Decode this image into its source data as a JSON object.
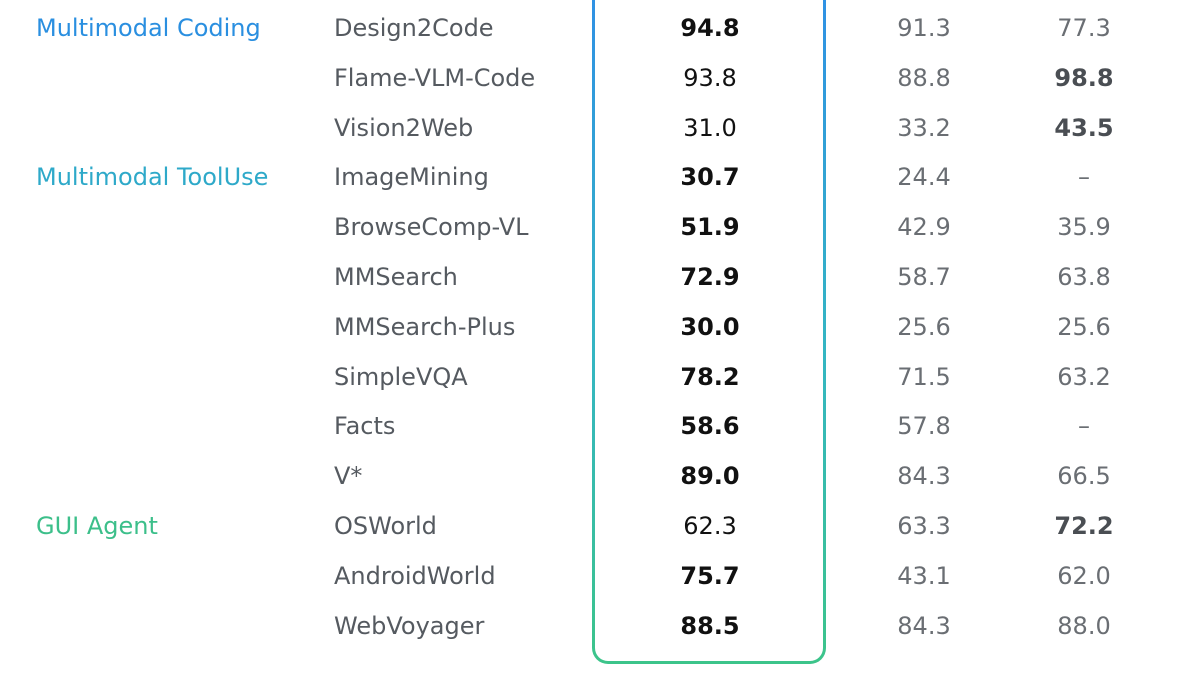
{
  "colors": {
    "category_blue": "#2a8fe0",
    "category_teal": "#2ea9c9",
    "category_green": "#3cbf8a",
    "highlight_border_top": "#2f8fe6",
    "highlight_border_bottom": "#3cc48a"
  },
  "chart_data": {
    "type": "table",
    "rows": [
      {
        "category": "Multimodal Coding",
        "category_color": "#2a8fe0",
        "benchmark": "Design2Code",
        "values": [
          "94.8",
          "91.3",
          "77.3"
        ],
        "bold": [
          true,
          false,
          false
        ]
      },
      {
        "category": "",
        "category_color": "",
        "benchmark": "Flame-VLM-Code",
        "values": [
          "93.8",
          "88.8",
          "98.8"
        ],
        "bold": [
          false,
          false,
          true
        ]
      },
      {
        "category": "",
        "category_color": "",
        "benchmark": "Vision2Web",
        "values": [
          "31.0",
          "33.2",
          "43.5"
        ],
        "bold": [
          false,
          false,
          true
        ]
      },
      {
        "category": "Multimodal ToolUse",
        "category_color": "#2ea9c9",
        "benchmark": "ImageMining",
        "values": [
          "30.7",
          "24.4",
          "–"
        ],
        "bold": [
          true,
          false,
          false
        ]
      },
      {
        "category": "",
        "category_color": "",
        "benchmark": "BrowseComp-VL",
        "values": [
          "51.9",
          "42.9",
          "35.9"
        ],
        "bold": [
          true,
          false,
          false
        ]
      },
      {
        "category": "",
        "category_color": "",
        "benchmark": "MMSearch",
        "values": [
          "72.9",
          "58.7",
          "63.8"
        ],
        "bold": [
          true,
          false,
          false
        ]
      },
      {
        "category": "",
        "category_color": "",
        "benchmark": "MMSearch-Plus",
        "values": [
          "30.0",
          "25.6",
          "25.6"
        ],
        "bold": [
          true,
          false,
          false
        ]
      },
      {
        "category": "",
        "category_color": "",
        "benchmark": "SimpleVQA",
        "values": [
          "78.2",
          "71.5",
          "63.2"
        ],
        "bold": [
          true,
          false,
          false
        ]
      },
      {
        "category": "",
        "category_color": "",
        "benchmark": "Facts",
        "values": [
          "58.6",
          "57.8",
          "–"
        ],
        "bold": [
          true,
          false,
          false
        ]
      },
      {
        "category": "",
        "category_color": "",
        "benchmark": "V*",
        "values": [
          "89.0",
          "84.3",
          "66.5"
        ],
        "bold": [
          true,
          false,
          false
        ]
      },
      {
        "category": "GUI Agent",
        "category_color": "#3cbf8a",
        "benchmark": "OSWorld",
        "values": [
          "62.3",
          "63.3",
          "72.2"
        ],
        "bold": [
          false,
          false,
          true
        ]
      },
      {
        "category": "",
        "category_color": "",
        "benchmark": "AndroidWorld",
        "values": [
          "75.7",
          "43.1",
          "62.0"
        ],
        "bold": [
          true,
          false,
          false
        ]
      },
      {
        "category": "",
        "category_color": "",
        "benchmark": "WebVoyager",
        "values": [
          "88.5",
          "84.3",
          "88.0"
        ],
        "bold": [
          true,
          false,
          false
        ]
      }
    ]
  }
}
